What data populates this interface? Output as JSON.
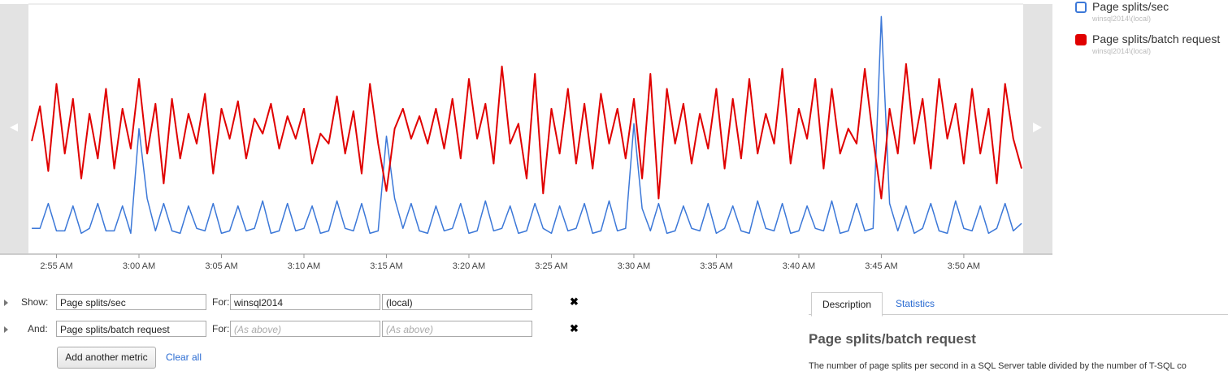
{
  "chart_data": {
    "type": "line",
    "x": [
      53.5,
      54,
      54.5,
      55,
      55.5,
      56,
      56.5,
      57,
      57.5,
      58,
      58.5,
      59,
      59.5,
      60,
      60.5,
      61,
      61.5,
      62,
      62.5,
      63,
      63.5,
      64,
      64.5,
      65,
      65.5,
      66,
      66.5,
      67,
      67.5,
      68,
      68.5,
      69,
      69.5,
      70,
      70.5,
      71,
      71.5,
      72,
      72.5,
      73,
      73.5,
      74,
      74.5,
      75,
      75.5,
      76,
      76.5,
      77,
      77.5,
      78,
      78.5,
      79,
      79.5,
      80,
      80.5,
      81,
      81.5,
      82,
      82.5,
      83,
      83.5,
      84,
      84.5,
      85,
      85.5,
      86,
      86.5,
      87,
      87.5,
      88,
      88.5,
      89,
      89.5,
      90,
      90.5,
      91,
      91.5,
      92,
      92.5,
      93,
      93.5,
      94,
      94.5,
      95,
      95.5,
      96,
      96.5,
      97,
      97.5,
      98,
      98.5,
      99,
      99.5,
      100,
      100.5,
      101,
      101.5,
      102,
      102.5,
      103,
      103.5,
      104,
      104.5,
      105,
      105.5,
      106,
      106.5,
      107,
      107.5,
      108,
      108.5,
      109,
      109.5,
      110,
      110.5,
      111,
      111.5,
      112,
      112.5,
      113,
      113.5
    ],
    "xlim": [
      53.3,
      113.6
    ],
    "xticks": [
      {
        "value": 55,
        "label": "2:55 AM"
      },
      {
        "value": 60,
        "label": "3:00 AM"
      },
      {
        "value": 65,
        "label": "3:05 AM"
      },
      {
        "value": 70,
        "label": "3:10 AM"
      },
      {
        "value": 75,
        "label": "3:15 AM"
      },
      {
        "value": 80,
        "label": "3:20 AM"
      },
      {
        "value": 85,
        "label": "3:25 AM"
      },
      {
        "value": 90,
        "label": "3:30 AM"
      },
      {
        "value": 95,
        "label": "3:35 AM"
      },
      {
        "value": 100,
        "label": "3:40 AM"
      },
      {
        "value": 105,
        "label": "3:45 AM"
      },
      {
        "value": 110,
        "label": "3:50 AM"
      }
    ],
    "ylim": [
      0,
      100
    ],
    "series": [
      {
        "name": "Page splits/sec",
        "instance": "winsql2014\\(local)",
        "color": "#3c78d8",
        "checked": false,
        "values": [
          10,
          10,
          20,
          9,
          9,
          19,
          8,
          10,
          20,
          9,
          9,
          19,
          8,
          50,
          22,
          9,
          20,
          9,
          8,
          19,
          10,
          9,
          20,
          8,
          9,
          19,
          9,
          10,
          21,
          8,
          9,
          20,
          9,
          10,
          19,
          8,
          9,
          21,
          10,
          9,
          20,
          8,
          9,
          47,
          22,
          10,
          20,
          9,
          8,
          19,
          9,
          10,
          20,
          8,
          9,
          21,
          9,
          10,
          19,
          8,
          9,
          20,
          10,
          8,
          19,
          9,
          10,
          20,
          8,
          9,
          21,
          9,
          10,
          52,
          18,
          9,
          20,
          8,
          9,
          19,
          10,
          9,
          20,
          8,
          10,
          19,
          9,
          8,
          21,
          10,
          9,
          20,
          8,
          9,
          19,
          10,
          9,
          21,
          8,
          9,
          20,
          9,
          10,
          95,
          20,
          9,
          19,
          8,
          10,
          20,
          9,
          8,
          21,
          10,
          9,
          19,
          8,
          10,
          20,
          9,
          12
        ]
      },
      {
        "name": "Page splits/batch request",
        "instance": "winsql2014\\(local)",
        "color": "#e00000",
        "checked": true,
        "values": [
          45,
          59,
          33,
          68,
          40,
          62,
          30,
          56,
          38,
          66,
          34,
          58,
          42,
          70,
          40,
          60,
          28,
          62,
          38,
          56,
          44,
          64,
          32,
          58,
          46,
          61,
          38,
          54,
          48,
          60,
          42,
          55,
          46,
          58,
          36,
          48,
          44,
          63,
          40,
          57,
          32,
          68,
          44,
          25,
          50,
          58,
          46,
          55,
          44,
          58,
          42,
          62,
          38,
          70,
          46,
          60,
          36,
          75,
          44,
          52,
          30,
          72,
          24,
          58,
          40,
          66,
          36,
          60,
          34,
          64,
          44,
          58,
          38,
          62,
          30,
          72,
          22,
          66,
          44,
          60,
          36,
          56,
          42,
          66,
          34,
          62,
          38,
          70,
          40,
          56,
          44,
          74,
          36,
          58,
          46,
          70,
          34,
          66,
          40,
          50,
          44,
          74,
          46,
          22,
          58,
          40,
          76,
          44,
          62,
          34,
          70,
          46,
          60,
          36,
          66,
          40,
          58,
          28,
          68,
          46,
          34
        ]
      }
    ]
  },
  "form": {
    "rows": [
      {
        "label": "Show:",
        "metric": "Page splits/sec",
        "for_label": "For:",
        "server": "winsql2014",
        "instance": "(local)"
      },
      {
        "label": "And:",
        "metric": "Page splits/batch request",
        "for_label": "For:",
        "server_placeholder": "(As above)",
        "instance_placeholder": "(As above)"
      }
    ],
    "add_button": "Add another metric",
    "clear_link": "Clear all"
  },
  "panel": {
    "tabs": [
      "Description",
      "Statistics"
    ],
    "heading": "Page splits/batch request",
    "text": "The number of page splits per second in a SQL Server table divided by the number of T-SQL co"
  }
}
